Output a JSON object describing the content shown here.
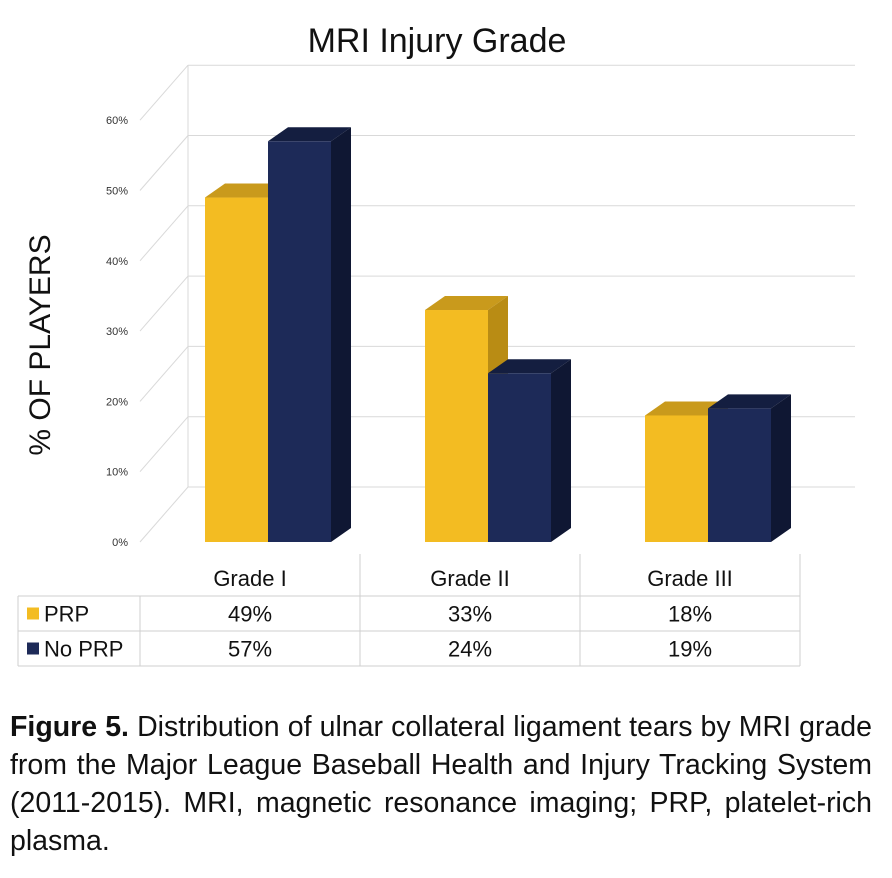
{
  "chart_data": {
    "type": "bar",
    "title": "MRI Injury Grade",
    "ylabel": "% OF PLAYERS",
    "xlabel": "",
    "categories": [
      "Grade I",
      "Grade II",
      "Grade III"
    ],
    "ylim": [
      0,
      60
    ],
    "y_ticks": [
      "0%",
      "10%",
      "20%",
      "30%",
      "40%",
      "50%",
      "60%"
    ],
    "y_tick_values": [
      0,
      10,
      20,
      30,
      40,
      50,
      60
    ],
    "grid": true,
    "style": "3d-clustered-bar-with-data-table",
    "series": [
      {
        "name": "PRP",
        "values": [
          49,
          33,
          18
        ],
        "labels": [
          "49%",
          "33%",
          "18%"
        ],
        "color": "#F3BC22"
      },
      {
        "name": "No PRP",
        "values": [
          57,
          24,
          19
        ],
        "labels": [
          "57%",
          "24%",
          "19%"
        ],
        "color": "#1D2A58"
      }
    ]
  },
  "caption": {
    "label": "Figure 5.",
    "text": "Distribution of ulnar collateral ligament tears by MRI grade from the Major League Baseball Health and Injury Tracking System (2011-2015). MRI, magnetic resonance imaging; PRP, platelet-rich plasma."
  },
  "colors": {
    "prp": "#F3BC22",
    "prp_side": "#B98C14",
    "prp_top": "#C99A1C",
    "noprp": "#1D2A58",
    "noprp_side": "#0F1733",
    "noprp_top": "#141E40",
    "grid": "#D9D9D9",
    "table_border": "#CFCFCF"
  }
}
